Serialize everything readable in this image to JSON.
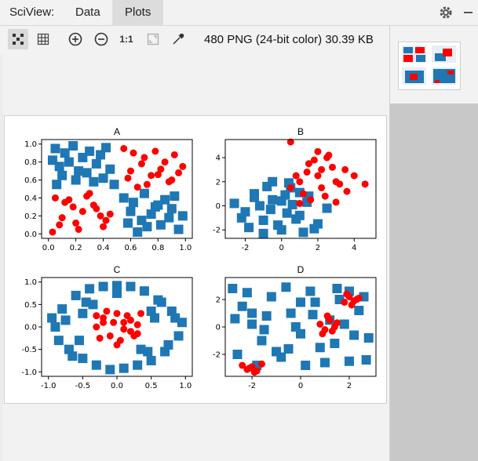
{
  "app": {
    "title": "SciView:"
  },
  "tabs": [
    {
      "label": "Data"
    },
    {
      "label": "Plots"
    }
  ],
  "image_info": "480 PNG (24-bit color) 30.39 KB",
  "toolbar": {
    "actual_size_label": "1:1",
    "icons": [
      "fit-grid-icon",
      "grid-icon",
      "zoom-in-icon",
      "zoom-out-icon",
      "actual-size-icon",
      "fit-window-icon",
      "eyedropper-icon"
    ]
  },
  "colors": {
    "blue": "#1f77b4",
    "red": "#ff0000"
  },
  "chart_data": [
    {
      "type": "scatter",
      "title": "A",
      "xlim": [
        -0.05,
        1.05
      ],
      "ylim": [
        -0.05,
        1.05
      ],
      "xticks": [
        "0.0",
        "0.2",
        "0.4",
        "0.6",
        "0.8",
        "1.0"
      ],
      "yticks": [
        "0.0",
        "0.2",
        "0.4",
        "0.6",
        "0.8",
        "1.0"
      ],
      "series": [
        {
          "marker": "square",
          "color": "#1f77b4",
          "x": [
            0.05,
            0.12,
            0.18,
            0.25,
            0.3,
            0.38,
            0.42,
            0.08,
            0.15,
            0.22,
            0.35,
            0.45,
            0.1,
            0.2,
            0.28,
            0.4,
            0.48,
            0.03,
            0.33,
            0.06,
            0.55,
            0.62,
            0.7,
            0.78,
            0.85,
            0.92,
            0.98,
            0.6,
            0.68,
            0.75,
            0.82,
            0.9,
            0.95,
            0.58,
            0.72,
            0.88,
            0.65,
            0.8
          ],
          "y": [
            0.95,
            0.9,
            0.98,
            0.85,
            0.92,
            0.88,
            0.96,
            0.75,
            0.8,
            0.7,
            0.78,
            0.72,
            0.65,
            0.6,
            0.68,
            0.62,
            0.55,
            0.82,
            0.58,
            0.55,
            0.4,
            0.35,
            0.45,
            0.3,
            0.38,
            0.42,
            0.2,
            0.25,
            0.15,
            0.22,
            0.1,
            0.28,
            0.05,
            0.12,
            0.08,
            0.18,
            0.02,
            0.32
          ]
        },
        {
          "marker": "circle",
          "color": "#ff0000",
          "x": [
            0.55,
            0.62,
            0.7,
            0.78,
            0.85,
            0.92,
            0.98,
            0.6,
            0.68,
            0.75,
            0.82,
            0.9,
            0.95,
            0.58,
            0.72,
            0.88,
            0.65,
            0.8,
            0.05,
            0.12,
            0.18,
            0.25,
            0.3,
            0.38,
            0.42,
            0.08,
            0.15,
            0.22,
            0.35,
            0.45,
            0.1,
            0.2,
            0.28,
            0.4,
            0.03,
            0.33
          ],
          "y": [
            0.95,
            0.9,
            0.85,
            0.92,
            0.8,
            0.88,
            0.75,
            0.7,
            0.78,
            0.65,
            0.72,
            0.6,
            0.68,
            0.62,
            0.55,
            0.58,
            0.52,
            0.66,
            0.4,
            0.35,
            0.3,
            0.25,
            0.45,
            0.2,
            0.15,
            0.1,
            0.38,
            0.05,
            0.28,
            0.22,
            0.18,
            0.12,
            0.42,
            0.08,
            0.02,
            0.32
          ]
        }
      ]
    },
    {
      "type": "scatter",
      "title": "B",
      "xlim": [
        -3.1,
        5.2
      ],
      "ylim": [
        -2.7,
        5.5
      ],
      "xticks": [
        "-2",
        "0",
        "2",
        "4"
      ],
      "yticks": [
        "-2",
        "0",
        "2",
        "4"
      ],
      "series": [
        {
          "marker": "square",
          "color": "#1f77b4",
          "x": [
            -2.6,
            -2.0,
            -1.5,
            -1.0,
            -0.5,
            0,
            0.5,
            1.0,
            1.5,
            2.0,
            -1.8,
            -1.2,
            -0.6,
            0.2,
            0.8,
            1.4,
            -0.8,
            -0.2,
            0.6,
            1.2,
            -1.5,
            -0.5,
            0.3,
            1.0,
            -2.2,
            2.5,
            0.0,
            -1.0,
            1.8,
            0.4
          ],
          "y": [
            0.2,
            -0.5,
            1.0,
            -1.2,
            0.5,
            -2.0,
            1.5,
            -0.8,
            0.8,
            -1.5,
            -1.8,
            0.0,
            -0.3,
            0.9,
            -1.1,
            0.3,
            1.6,
            -1.6,
            0.1,
            -2.2,
            0.7,
            2.0,
            -0.6,
            1.1,
            -1.0,
            -0.2,
            0.4,
            -2.3,
            -1.9,
            1.9
          ]
        },
        {
          "marker": "circle",
          "color": "#ff0000",
          "x": [
            0.5,
            1.0,
            1.5,
            2.0,
            2.5,
            3.0,
            3.5,
            4.0,
            1.2,
            1.8,
            2.2,
            2.8,
            3.2,
            0.8,
            1.6,
            2.4,
            3.6,
            4.6,
            0.5,
            2.0,
            1.4,
            2.6,
            3.0,
            1.0,
            2.2
          ],
          "y": [
            1.5,
            2.0,
            3.5,
            2.5,
            4.0,
            2.0,
            3.0,
            2.5,
            1.0,
            3.8,
            1.5,
            3.2,
            1.8,
            2.5,
            0.5,
            0.8,
            1.2,
            1.8,
            5.3,
            4.5,
            2.8,
            4.2,
            0.3,
            0.2,
            3.0
          ]
        }
      ]
    },
    {
      "type": "scatter",
      "title": "C",
      "xlim": [
        -1.1,
        1.1
      ],
      "ylim": [
        -1.1,
        1.1
      ],
      "xticks": [
        "-1.0",
        "-0.5",
        "0.0",
        "0.5",
        "1.0"
      ],
      "yticks": [
        "-1.0",
        "-0.5",
        "0.0",
        "0.5",
        "1.0"
      ],
      "series": [
        {
          "marker": "square",
          "color": "#1f77b4",
          "x": [
            -0.9,
            -0.8,
            -0.7,
            -0.6,
            -0.5,
            -0.4,
            -0.3,
            -0.2,
            0.2,
            0.3,
            0.4,
            0.5,
            0.6,
            0.7,
            0.8,
            0.9,
            -0.85,
            -0.65,
            -0.45,
            0.45,
            0.65,
            0.85,
            -0.75,
            0.75,
            -0.55,
            0.55,
            -0.35,
            0.35,
            0.0,
            -0.1,
            0.1,
            0.0,
            -0.95,
            0.95,
            -0.5,
            0.5
          ],
          "y": [
            0.0,
            0.4,
            -0.5,
            0.7,
            -0.7,
            0.85,
            -0.85,
            0.9,
            0.9,
            -0.85,
            0.8,
            -0.75,
            0.6,
            -0.55,
            0.35,
            -0.2,
            -0.3,
            -0.65,
            0.55,
            -0.55,
            0.55,
            0.2,
            0.15,
            -0.4,
            -0.3,
            0.2,
            0.5,
            -0.5,
            0.92,
            -0.95,
            -0.92,
            0.75,
            0.2,
            0.1,
            0.3,
            0.35
          ]
        },
        {
          "marker": "circle",
          "color": "#ff0000",
          "x": [
            -0.3,
            -0.2,
            -0.1,
            0,
            0.1,
            0.2,
            0.3,
            -0.25,
            -0.15,
            0.05,
            0.15,
            0.25,
            -0.05,
            0.1,
            -0.2,
            0.2,
            0,
            -0.3,
            0.3,
            0.35
          ],
          "y": [
            0.0,
            0.2,
            -0.2,
            0.3,
            0.1,
            -0.1,
            0.05,
            -0.25,
            0.35,
            -0.3,
            0.25,
            -0.2,
            0.1,
            -0.05,
            0.1,
            0.15,
            -0.4,
            0.25,
            -0.15,
            0.3
          ]
        }
      ]
    },
    {
      "type": "scatter",
      "title": "D",
      "xlim": [
        -3.1,
        3.1
      ],
      "ylim": [
        -3.6,
        3.6
      ],
      "xticks": [
        "-2",
        "0",
        "2"
      ],
      "yticks": [
        "-2",
        "0",
        "2"
      ],
      "series": [
        {
          "marker": "square",
          "color": "#1f77b4",
          "x": [
            -2.8,
            -2.4,
            -2.0,
            -1.6,
            -1.2,
            -0.8,
            -0.4,
            0,
            0.4,
            0.8,
            1.2,
            1.6,
            2.0,
            2.4,
            2.8,
            -2.6,
            -2.2,
            -1.8,
            -1.4,
            -1.0,
            -0.6,
            -0.2,
            0.2,
            0.6,
            1.0,
            1.4,
            1.8,
            2.2,
            2.6,
            -2.7,
            -1.5,
            -0.5,
            0.5,
            1.5,
            2.7,
            -2.0,
            0.0,
            2.0
          ],
          "y": [
            2.8,
            1.5,
            0.2,
            -1.0,
            2.2,
            -2.2,
            1.0,
            -0.5,
            2.6,
            -1.5,
            0.5,
            2.0,
            -2.5,
            1.2,
            -0.8,
            -2.0,
            2.5,
            -2.8,
            0.8,
            -1.8,
            2.9,
            0.0,
            -2.8,
            1.8,
            -2.6,
            -1.2,
            0.2,
            -0.6,
            2.2,
            0.6,
            -0.2,
            -1.6,
            0.9,
            2.8,
            -2.4,
            1.0,
            1.8,
            2.6
          ]
        },
        {
          "marker": "circle",
          "color": "#ff0000",
          "x": [
            -2.4,
            -2.2,
            -2.0,
            -1.8,
            -1.6,
            -2.1,
            -1.9,
            0.8,
            1.0,
            1.2,
            1.4,
            0.9,
            1.1,
            1.3,
            1.5,
            1.8,
            2.0,
            2.2,
            2.4,
            1.9,
            2.1,
            2.3
          ],
          "y": [
            -2.8,
            -3.1,
            -2.9,
            -3.2,
            -2.7,
            -3.0,
            -3.3,
            0.2,
            -0.2,
            0.5,
            0.0,
            -0.5,
            0.8,
            -0.3,
            0.3,
            1.8,
            2.2,
            1.9,
            2.1,
            2.4,
            1.6,
            2.0
          ]
        }
      ]
    }
  ]
}
